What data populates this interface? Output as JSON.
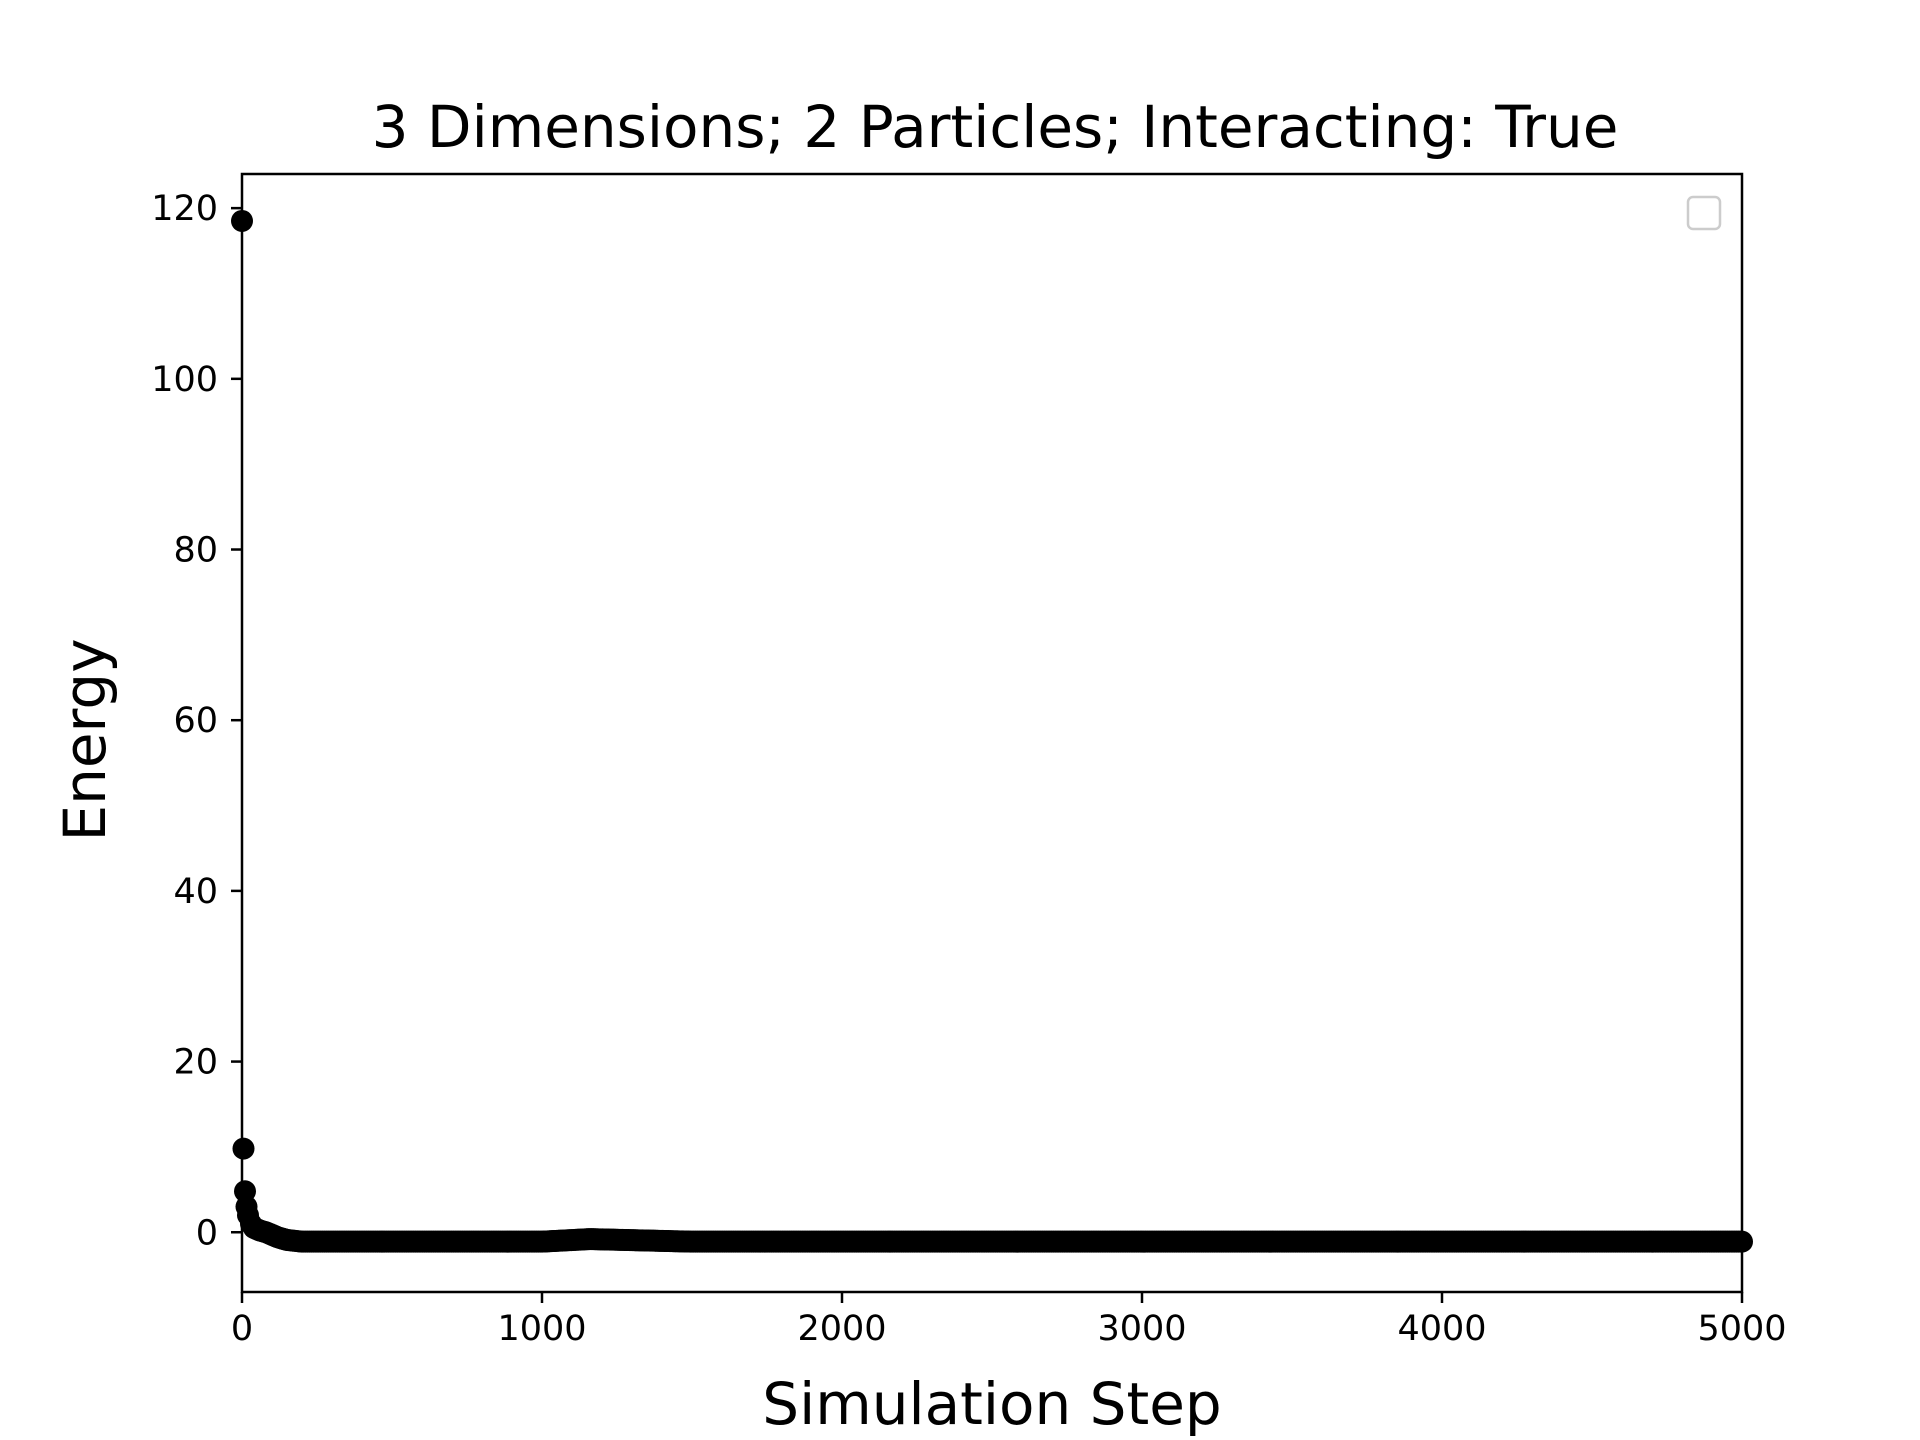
{
  "chart_data": {
    "type": "scatter",
    "title": "3 Dimensions; 2 Particles; Interacting: True",
    "xlabel": "Simulation Step",
    "ylabel": "Energy",
    "xlim": [
      0,
      5000
    ],
    "ylim": [
      -7,
      124
    ],
    "x_ticks": [
      0,
      1000,
      2000,
      3000,
      4000,
      5000
    ],
    "x_tick_labels": [
      "0",
      "1000",
      "2000",
      "3000",
      "4000",
      "5000"
    ],
    "y_ticks": [
      0,
      20,
      40,
      60,
      80,
      100,
      120
    ],
    "y_tick_labels": [
      "0",
      "20",
      "40",
      "60",
      "80",
      "100",
      "120"
    ],
    "grid": false,
    "legend": "top-right",
    "legend_entries": [],
    "marker_color": "#000000",
    "series": [
      {
        "x": [
          0,
          5,
          10,
          15,
          20,
          30,
          40,
          60,
          80,
          100,
          120,
          150,
          200,
          300,
          500,
          1000,
          1160,
          1500,
          2000,
          2500,
          3000,
          3500,
          4000,
          4500,
          5000
        ],
        "y": [
          118.5,
          9.8,
          4.8,
          3.0,
          2.0,
          1.0,
          0.5,
          0.2,
          0.0,
          -0.3,
          -0.6,
          -0.9,
          -1.1,
          -1.1,
          -1.1,
          -1.1,
          -0.8,
          -1.1,
          -1.1,
          -1.1,
          -1.1,
          -1.1,
          -1.1,
          -1.1,
          -1.1
        ]
      }
    ]
  }
}
